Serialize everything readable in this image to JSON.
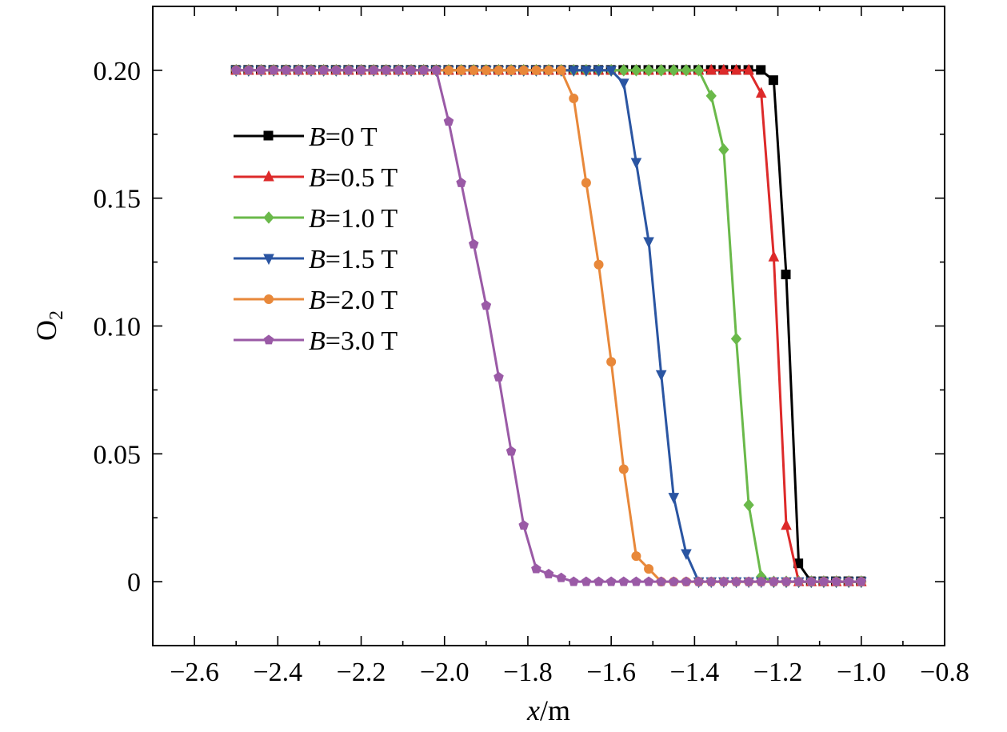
{
  "chart_data": {
    "type": "line",
    "xlabel": "x/m",
    "ylabel": "O2",
    "xlim": [
      -2.7,
      -0.8
    ],
    "ylim": [
      -0.025,
      0.225
    ],
    "xticks": [
      -2.6,
      -2.4,
      -2.2,
      -2.0,
      -1.8,
      -1.6,
      -1.4,
      -1.2,
      -1.0,
      -0.8
    ],
    "xtick_labels": [
      "−2.6",
      "−2.4",
      "−2.2",
      "−2.0",
      "−1.8",
      "−1.6",
      "−1.4",
      "−1.2",
      "−1.0",
      "−0.8"
    ],
    "yticks": [
      0,
      0.05,
      0.1,
      0.15,
      0.2
    ],
    "ytick_labels": [
      "0",
      "0.05",
      "0.10",
      "0.15",
      "0.20"
    ],
    "grid": false,
    "legend_position": "upper-left",
    "series": [
      {
        "name": "B=0 T",
        "var": "B",
        "rest": "=0 T",
        "color": "#000000",
        "marker": "square",
        "x": [
          -2.5,
          -2.47,
          -2.44,
          -2.41,
          -2.38,
          -2.35,
          -2.32,
          -2.29,
          -2.26,
          -2.23,
          -2.2,
          -2.17,
          -2.14,
          -2.11,
          -2.08,
          -2.05,
          -2.02,
          -1.99,
          -1.96,
          -1.93,
          -1.9,
          -1.87,
          -1.84,
          -1.81,
          -1.78,
          -1.75,
          -1.72,
          -1.69,
          -1.66,
          -1.63,
          -1.6,
          -1.57,
          -1.54,
          -1.51,
          -1.48,
          -1.45,
          -1.42,
          -1.39,
          -1.36,
          -1.33,
          -1.3,
          -1.27,
          -1.24,
          -1.21,
          -1.18,
          -1.15,
          -1.12,
          -1.09,
          -1.06,
          -1.03,
          -1.0
        ],
        "y": [
          0.2,
          0.2,
          0.2,
          0.2,
          0.2,
          0.2,
          0.2,
          0.2,
          0.2,
          0.2,
          0.2,
          0.2,
          0.2,
          0.2,
          0.2,
          0.2,
          0.2,
          0.2,
          0.2,
          0.2,
          0.2,
          0.2,
          0.2,
          0.2,
          0.2,
          0.2,
          0.2,
          0.2,
          0.2,
          0.2,
          0.2,
          0.2,
          0.2,
          0.2,
          0.2,
          0.2,
          0.2,
          0.2,
          0.2,
          0.2,
          0.2,
          0.2,
          0.2,
          0.196,
          0.12,
          0.007,
          0.0,
          0.0,
          0.0,
          0.0,
          0.0
        ]
      },
      {
        "name": "B=0.5 T",
        "var": "B",
        "rest": "=0.5 T",
        "color": "#dd2a2a",
        "marker": "triangle-up",
        "x": [
          -2.5,
          -2.47,
          -2.44,
          -2.41,
          -2.38,
          -2.35,
          -2.32,
          -2.29,
          -2.26,
          -2.23,
          -2.2,
          -2.17,
          -2.14,
          -2.11,
          -2.08,
          -2.05,
          -2.02,
          -1.99,
          -1.96,
          -1.93,
          -1.9,
          -1.87,
          -1.84,
          -1.81,
          -1.78,
          -1.75,
          -1.72,
          -1.69,
          -1.66,
          -1.63,
          -1.6,
          -1.57,
          -1.54,
          -1.51,
          -1.48,
          -1.45,
          -1.42,
          -1.39,
          -1.36,
          -1.33,
          -1.3,
          -1.27,
          -1.24,
          -1.21,
          -1.18,
          -1.15,
          -1.12,
          -1.09,
          -1.06,
          -1.03,
          -1.0
        ],
        "y": [
          0.2,
          0.2,
          0.2,
          0.2,
          0.2,
          0.2,
          0.2,
          0.2,
          0.2,
          0.2,
          0.2,
          0.2,
          0.2,
          0.2,
          0.2,
          0.2,
          0.2,
          0.2,
          0.2,
          0.2,
          0.2,
          0.2,
          0.2,
          0.2,
          0.2,
          0.2,
          0.2,
          0.2,
          0.2,
          0.2,
          0.2,
          0.2,
          0.2,
          0.2,
          0.2,
          0.2,
          0.2,
          0.2,
          0.2,
          0.2,
          0.2,
          0.2,
          0.191,
          0.127,
          0.022,
          0.0,
          0.0,
          0.0,
          0.0,
          0.0,
          0.0
        ]
      },
      {
        "name": "B=1.0 T",
        "var": "B",
        "rest": "=1.0 T",
        "color": "#6ab94a",
        "marker": "diamond",
        "x": [
          -2.5,
          -2.47,
          -2.44,
          -2.41,
          -2.38,
          -2.35,
          -2.32,
          -2.29,
          -2.26,
          -2.23,
          -2.2,
          -2.17,
          -2.14,
          -2.11,
          -2.08,
          -2.05,
          -2.02,
          -1.99,
          -1.96,
          -1.93,
          -1.9,
          -1.87,
          -1.84,
          -1.81,
          -1.78,
          -1.75,
          -1.72,
          -1.69,
          -1.66,
          -1.63,
          -1.6,
          -1.57,
          -1.54,
          -1.51,
          -1.48,
          -1.45,
          -1.42,
          -1.39,
          -1.36,
          -1.33,
          -1.3,
          -1.27,
          -1.24,
          -1.21,
          -1.18,
          -1.15,
          -1.12,
          -1.09,
          -1.06,
          -1.03,
          -1.0
        ],
        "y": [
          0.2,
          0.2,
          0.2,
          0.2,
          0.2,
          0.2,
          0.2,
          0.2,
          0.2,
          0.2,
          0.2,
          0.2,
          0.2,
          0.2,
          0.2,
          0.2,
          0.2,
          0.2,
          0.2,
          0.2,
          0.2,
          0.2,
          0.2,
          0.2,
          0.2,
          0.2,
          0.2,
          0.2,
          0.2,
          0.2,
          0.2,
          0.2,
          0.2,
          0.2,
          0.2,
          0.2,
          0.2,
          0.2,
          0.19,
          0.169,
          0.095,
          0.03,
          0.002,
          0.0,
          0.0,
          0.0,
          0.0,
          0.0,
          0.0,
          0.0,
          0.0
        ]
      },
      {
        "name": "B=1.5 T",
        "var": "B",
        "rest": "=1.5 T",
        "color": "#2a55a2",
        "marker": "triangle-down",
        "x": [
          -2.5,
          -2.47,
          -2.44,
          -2.41,
          -2.38,
          -2.35,
          -2.32,
          -2.29,
          -2.26,
          -2.23,
          -2.2,
          -2.17,
          -2.14,
          -2.11,
          -2.08,
          -2.05,
          -2.02,
          -1.99,
          -1.96,
          -1.93,
          -1.9,
          -1.87,
          -1.84,
          -1.81,
          -1.78,
          -1.75,
          -1.72,
          -1.69,
          -1.66,
          -1.63,
          -1.6,
          -1.57,
          -1.54,
          -1.51,
          -1.48,
          -1.45,
          -1.42,
          -1.39,
          -1.36,
          -1.33,
          -1.3,
          -1.27,
          -1.24,
          -1.21,
          -1.18,
          -1.15,
          -1.12,
          -1.09,
          -1.06,
          -1.03,
          -1.0
        ],
        "y": [
          0.2,
          0.2,
          0.2,
          0.2,
          0.2,
          0.2,
          0.2,
          0.2,
          0.2,
          0.2,
          0.2,
          0.2,
          0.2,
          0.2,
          0.2,
          0.2,
          0.2,
          0.2,
          0.2,
          0.2,
          0.2,
          0.2,
          0.2,
          0.2,
          0.2,
          0.2,
          0.2,
          0.2,
          0.2,
          0.2,
          0.2,
          0.195,
          0.164,
          0.133,
          0.081,
          0.033,
          0.011,
          0.0,
          0.0,
          0.0,
          0.0,
          0.0,
          0.0,
          0.0,
          0.0,
          0.0,
          0.0,
          0.0,
          0.0,
          0.0,
          0.0
        ]
      },
      {
        "name": "B=2.0 T",
        "var": "B",
        "rest": "=2.0 T",
        "color": "#e8883a",
        "marker": "circle",
        "x": [
          -2.5,
          -2.47,
          -2.44,
          -2.41,
          -2.38,
          -2.35,
          -2.32,
          -2.29,
          -2.26,
          -2.23,
          -2.2,
          -2.17,
          -2.14,
          -2.11,
          -2.08,
          -2.05,
          -2.02,
          -1.99,
          -1.96,
          -1.93,
          -1.9,
          -1.87,
          -1.84,
          -1.81,
          -1.78,
          -1.75,
          -1.72,
          -1.69,
          -1.66,
          -1.63,
          -1.6,
          -1.57,
          -1.54,
          -1.51,
          -1.48,
          -1.45,
          -1.42,
          -1.39,
          -1.36,
          -1.33,
          -1.3,
          -1.27,
          -1.24,
          -1.21,
          -1.18,
          -1.15,
          -1.12,
          -1.09,
          -1.06,
          -1.03,
          -1.0
        ],
        "y": [
          0.2,
          0.2,
          0.2,
          0.2,
          0.2,
          0.2,
          0.2,
          0.2,
          0.2,
          0.2,
          0.2,
          0.2,
          0.2,
          0.2,
          0.2,
          0.2,
          0.2,
          0.2,
          0.2,
          0.2,
          0.2,
          0.2,
          0.2,
          0.2,
          0.2,
          0.2,
          0.2,
          0.189,
          0.156,
          0.124,
          0.086,
          0.044,
          0.01,
          0.005,
          0.0,
          0.0,
          0.0,
          0.0,
          0.0,
          0.0,
          0.0,
          0.0,
          0.0,
          0.0,
          0.0,
          0.0,
          0.0,
          0.0,
          0.0,
          0.0,
          0.0
        ]
      },
      {
        "name": "B=3.0 T",
        "var": "B",
        "rest": "=3.0 T",
        "color": "#9a5aa6",
        "marker": "pentagon",
        "x": [
          -2.5,
          -2.47,
          -2.44,
          -2.41,
          -2.38,
          -2.35,
          -2.32,
          -2.29,
          -2.26,
          -2.23,
          -2.2,
          -2.17,
          -2.14,
          -2.11,
          -2.08,
          -2.05,
          -2.02,
          -1.99,
          -1.96,
          -1.93,
          -1.9,
          -1.87,
          -1.84,
          -1.81,
          -1.78,
          -1.75,
          -1.72,
          -1.69,
          -1.66,
          -1.63,
          -1.6,
          -1.57,
          -1.54,
          -1.51,
          -1.48,
          -1.45,
          -1.42,
          -1.39,
          -1.36,
          -1.33,
          -1.3,
          -1.27,
          -1.24,
          -1.21,
          -1.18,
          -1.15,
          -1.12,
          -1.09,
          -1.06,
          -1.03,
          -1.0
        ],
        "y": [
          0.2,
          0.2,
          0.2,
          0.2,
          0.2,
          0.2,
          0.2,
          0.2,
          0.2,
          0.2,
          0.2,
          0.2,
          0.2,
          0.2,
          0.2,
          0.2,
          0.2,
          0.18,
          0.156,
          0.132,
          0.108,
          0.08,
          0.051,
          0.022,
          0.005,
          0.003,
          0.0015,
          0.0,
          0.0,
          0.0,
          0.0,
          0.0,
          0.0,
          0.0,
          0.0,
          0.0,
          0.0,
          0.0,
          0.0,
          0.0,
          0.0,
          0.0,
          0.0,
          0.0,
          0.0,
          0.0,
          0.0,
          0.0,
          0.0,
          0.0,
          0.0
        ]
      }
    ]
  }
}
